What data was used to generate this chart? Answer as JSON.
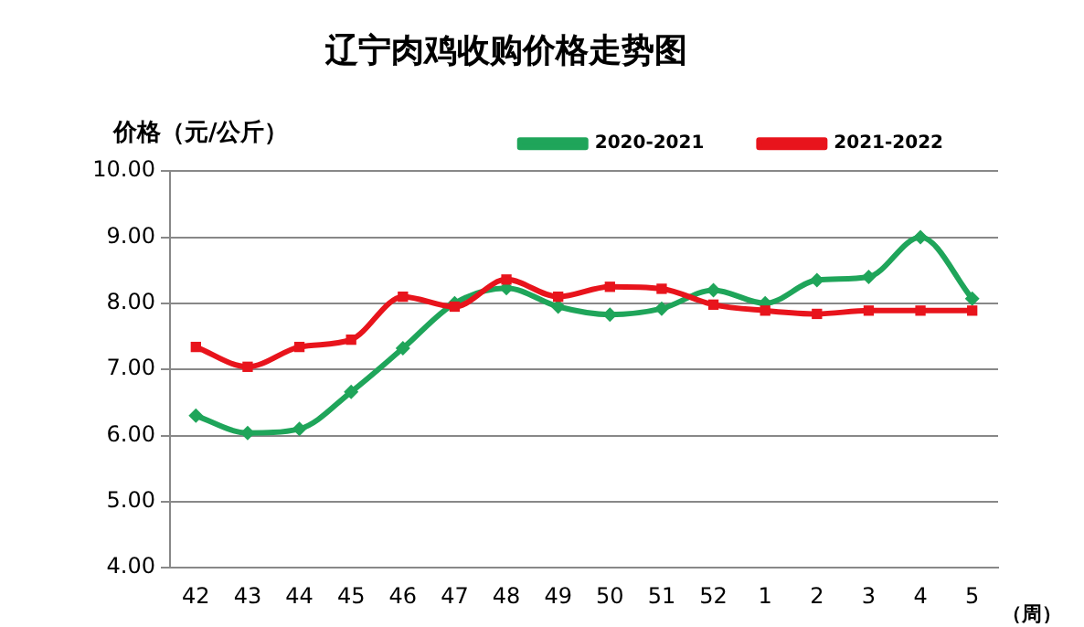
{
  "chart_data": {
    "type": "line",
    "title": "辽宁肉鸡收购价格走势图",
    "ylabel": "价格（元/公斤）",
    "xlabel": "（周）",
    "categories": [
      "42",
      "43",
      "44",
      "45",
      "46",
      "47",
      "48",
      "49",
      "50",
      "51",
      "52",
      "1",
      "2",
      "3",
      "4",
      "5"
    ],
    "series": [
      {
        "name": "2020-2021",
        "color": "#1fa55a",
        "marker": "diamond",
        "values": [
          6.3,
          6.04,
          6.1,
          6.66,
          7.32,
          8.0,
          8.23,
          7.95,
          7.83,
          7.92,
          8.2,
          8.0,
          8.35,
          8.4,
          9.0,
          8.07
        ]
      },
      {
        "name": "2021-2022",
        "color": "#e8141c",
        "marker": "square",
        "values": [
          7.34,
          7.04,
          7.34,
          7.45,
          8.1,
          7.95,
          8.36,
          8.1,
          8.25,
          8.22,
          7.98,
          7.89,
          7.84,
          7.89,
          7.89,
          7.89
        ]
      }
    ],
    "ylim": [
      4,
      10
    ],
    "yticks": [
      {
        "value": 4,
        "label": "4.00"
      },
      {
        "value": 5,
        "label": "5.00"
      },
      {
        "value": 6,
        "label": "6.00"
      },
      {
        "value": 7,
        "label": "7.00"
      },
      {
        "value": 8,
        "label": "8.00"
      },
      {
        "value": 9,
        "label": "9.00"
      },
      {
        "value": 10,
        "label": "10.00"
      }
    ],
    "grid": "y",
    "legend": "top right",
    "line_style": "solid"
  }
}
